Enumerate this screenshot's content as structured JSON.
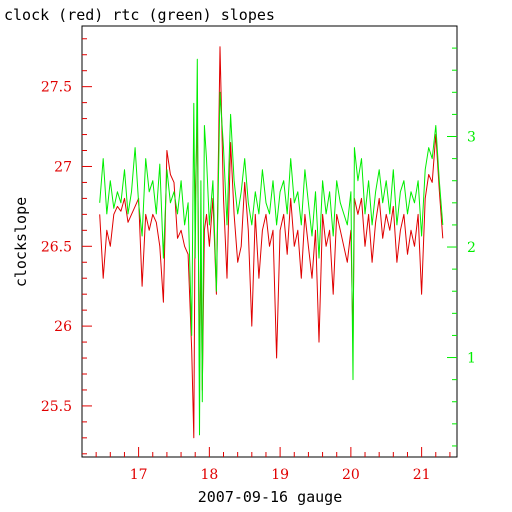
{
  "chart_data": {
    "type": "line",
    "title": "clock (red) rtc (green) slopes",
    "xlabel": "2007-09-16 gauge",
    "ylabel": "clockslope",
    "xlim": [
      16.2,
      21.5
    ],
    "ylim_left": [
      25.18,
      27.88
    ],
    "ylim_right": [
      0.1,
      4.0
    ],
    "x_ticks": [
      17,
      18,
      19,
      20,
      21
    ],
    "y_ticks_left": [
      25.5,
      26,
      26.5,
      27,
      27.5
    ],
    "y_ticks_left_labels": [
      "25.5",
      "26",
      "26.5",
      "27",
      "27.5"
    ],
    "y_ticks_right": [
      1,
      2,
      3
    ],
    "y_ticks_right_labels": [
      "1",
      "2",
      "3"
    ],
    "grid": false,
    "colors": {
      "clock": "#e00000",
      "rtc": "#00ee00",
      "axes": "#000000"
    },
    "series": [
      {
        "axis": "left",
        "color": "#e00000",
        "x": [
          16.45,
          16.5,
          16.55,
          16.6,
          16.65,
          16.7,
          16.75,
          16.8,
          16.85,
          16.9,
          16.95,
          17.0,
          17.05,
          17.1,
          17.15,
          17.2,
          17.25,
          17.3,
          17.35,
          17.4,
          17.45,
          17.5,
          17.55,
          17.6,
          17.65,
          17.7,
          17.75,
          17.78,
          17.8,
          17.83,
          17.86,
          17.88,
          17.9,
          17.93,
          17.96,
          18.0,
          18.05,
          18.1,
          18.15,
          18.2,
          18.25,
          18.3,
          18.35,
          18.4,
          18.45,
          18.5,
          18.55,
          18.6,
          18.65,
          18.7,
          18.75,
          18.8,
          18.85,
          18.9,
          18.95,
          19.0,
          19.05,
          19.1,
          19.15,
          19.2,
          19.25,
          19.3,
          19.35,
          19.4,
          19.45,
          19.5,
          19.55,
          19.6,
          19.65,
          19.7,
          19.75,
          19.8,
          19.85,
          19.9,
          19.95,
          20.0,
          20.03,
          20.05,
          20.1,
          20.15,
          20.2,
          20.25,
          20.3,
          20.35,
          20.4,
          20.45,
          20.5,
          20.55,
          20.6,
          20.65,
          20.7,
          20.75,
          20.8,
          20.85,
          20.9,
          20.95,
          21.0,
          21.05,
          21.1,
          21.15,
          21.2,
          21.25,
          21.3
        ],
        "y": [
          26.7,
          26.3,
          26.6,
          26.5,
          26.7,
          26.75,
          26.72,
          26.8,
          26.65,
          26.7,
          26.75,
          26.8,
          26.25,
          26.7,
          26.6,
          26.7,
          26.65,
          26.5,
          26.15,
          27.1,
          26.95,
          26.9,
          26.55,
          26.6,
          26.5,
          26.45,
          25.85,
          25.3,
          26.8,
          27.3,
          25.7,
          26.5,
          25.6,
          26.6,
          26.7,
          26.5,
          26.8,
          26.2,
          27.75,
          26.8,
          26.3,
          27.15,
          26.7,
          26.4,
          26.5,
          26.9,
          26.6,
          26.0,
          26.7,
          26.3,
          26.6,
          26.7,
          26.5,
          26.6,
          25.8,
          26.6,
          26.7,
          26.45,
          26.8,
          26.5,
          26.6,
          26.3,
          26.7,
          26.5,
          26.3,
          26.6,
          25.9,
          26.7,
          26.5,
          26.6,
          26.2,
          26.7,
          26.6,
          26.5,
          26.4,
          26.6,
          25.9,
          26.8,
          26.7,
          26.8,
          26.5,
          26.7,
          26.4,
          26.65,
          26.8,
          26.55,
          26.7,
          26.6,
          26.75,
          26.4,
          26.6,
          26.7,
          26.45,
          26.6,
          26.5,
          26.7,
          26.2,
          26.8,
          26.95,
          26.9,
          27.2,
          26.85,
          26.55
        ]
      },
      {
        "axis": "right",
        "color": "#00ee00",
        "x": [
          16.45,
          16.5,
          16.55,
          16.6,
          16.65,
          16.7,
          16.75,
          16.8,
          16.85,
          16.9,
          16.95,
          17.0,
          17.05,
          17.1,
          17.15,
          17.2,
          17.25,
          17.3,
          17.35,
          17.4,
          17.45,
          17.5,
          17.55,
          17.6,
          17.65,
          17.7,
          17.75,
          17.78,
          17.8,
          17.83,
          17.86,
          17.88,
          17.9,
          17.93,
          17.96,
          18.0,
          18.05,
          18.1,
          18.15,
          18.2,
          18.25,
          18.3,
          18.35,
          18.4,
          18.45,
          18.5,
          18.55,
          18.6,
          18.65,
          18.7,
          18.75,
          18.8,
          18.85,
          18.9,
          18.95,
          19.0,
          19.05,
          19.1,
          19.15,
          19.2,
          19.25,
          19.3,
          19.35,
          19.4,
          19.45,
          19.5,
          19.55,
          19.6,
          19.65,
          19.7,
          19.75,
          19.8,
          19.85,
          19.9,
          19.95,
          20.0,
          20.03,
          20.05,
          20.1,
          20.15,
          20.2,
          20.25,
          20.3,
          20.35,
          20.4,
          20.45,
          20.5,
          20.55,
          20.6,
          20.65,
          20.7,
          20.75,
          20.8,
          20.85,
          20.9,
          20.95,
          21.0,
          21.05,
          21.1,
          21.15,
          21.2,
          21.25,
          21.3
        ],
        "y": [
          2.4,
          2.8,
          2.3,
          2.6,
          2.35,
          2.5,
          2.4,
          2.7,
          2.3,
          2.5,
          2.9,
          2.4,
          2.1,
          2.8,
          2.5,
          2.6,
          2.3,
          2.75,
          1.9,
          2.7,
          2.4,
          2.5,
          2.3,
          2.6,
          2.2,
          2.4,
          1.2,
          3.3,
          1.9,
          3.7,
          0.3,
          2.6,
          0.6,
          3.1,
          2.8,
          2.2,
          2.6,
          1.6,
          3.4,
          2.9,
          2.2,
          3.2,
          2.6,
          2.3,
          2.5,
          2.8,
          2.4,
          2.2,
          2.5,
          2.3,
          2.7,
          2.4,
          2.3,
          2.6,
          2.2,
          2.5,
          2.6,
          2.3,
          2.8,
          2.4,
          2.5,
          2.2,
          2.7,
          2.4,
          2.1,
          2.5,
          1.9,
          2.6,
          2.3,
          2.5,
          2.1,
          2.6,
          2.4,
          2.3,
          2.2,
          2.5,
          0.8,
          2.9,
          2.6,
          2.8,
          2.3,
          2.6,
          2.2,
          2.5,
          2.7,
          2.4,
          2.6,
          2.3,
          2.7,
          2.2,
          2.5,
          2.6,
          2.3,
          2.5,
          2.4,
          2.6,
          2.1,
          2.7,
          2.9,
          2.8,
          3.1,
          2.6,
          2.2
        ]
      }
    ]
  }
}
